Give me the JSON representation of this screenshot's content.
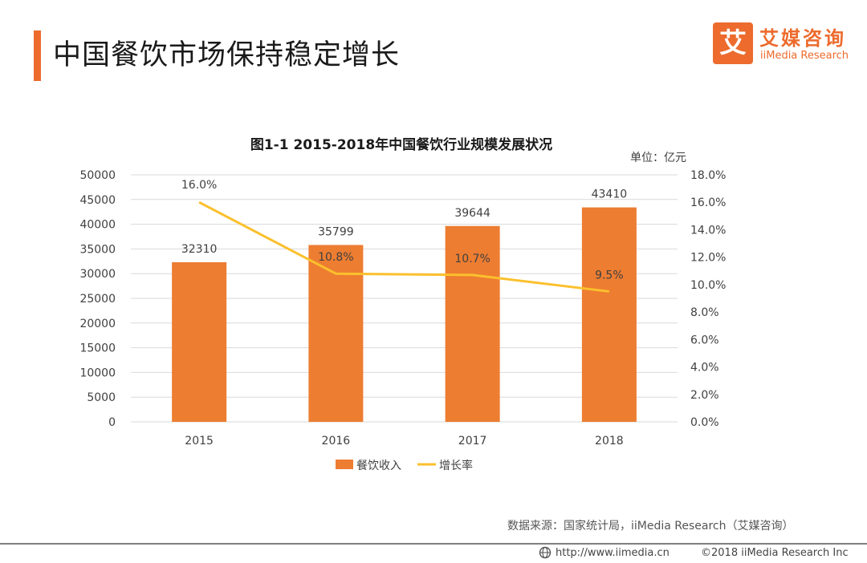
{
  "page": {
    "title": "中国餐饮市场保持稳定增长",
    "source": "数据来源：国家统计局，iiMedia Research（艾媒咨询）",
    "url": "http://www.iimedia.cn",
    "copyright": "©2018 iiMedia Research Inc"
  },
  "logo": {
    "mark": "艾",
    "name_cn": "艾媒咨询",
    "name_en": "iiMedia Research"
  },
  "colors": {
    "accent": "#ec6b2d",
    "bar": "#ed7d31",
    "line": "#fbc02d",
    "grid": "#d9d9d9",
    "text": "#404040"
  },
  "chart_data": {
    "type": "bar",
    "title": "图1-1 2015-2018年中国餐饮行业规模发展状况",
    "unit_label": "单位：亿元",
    "categories": [
      "2015",
      "2016",
      "2017",
      "2018"
    ],
    "series": [
      {
        "name": "餐饮收入",
        "type": "bar",
        "axis": "left",
        "values": [
          32310,
          35799,
          39644,
          43410
        ],
        "labels": [
          "32310",
          "35799",
          "39644",
          "43410"
        ]
      },
      {
        "name": "增长率",
        "type": "line",
        "axis": "right",
        "values": [
          16.0,
          10.8,
          10.7,
          9.5
        ],
        "labels": [
          "16.0%",
          "10.8%",
          "10.7%",
          "9.5%"
        ]
      }
    ],
    "y_left": {
      "min": 0,
      "max": 50000,
      "ticks": [
        "0",
        "5000",
        "10000",
        "15000",
        "20000",
        "25000",
        "30000",
        "35000",
        "40000",
        "45000",
        "50000"
      ]
    },
    "y_right": {
      "min": 0,
      "max": 18,
      "ticks": [
        "0.0%",
        "2.0%",
        "4.0%",
        "6.0%",
        "8.0%",
        "10.0%",
        "12.0%",
        "14.0%",
        "16.0%",
        "18.0%"
      ]
    },
    "grid": true,
    "legend_position": "bottom"
  }
}
